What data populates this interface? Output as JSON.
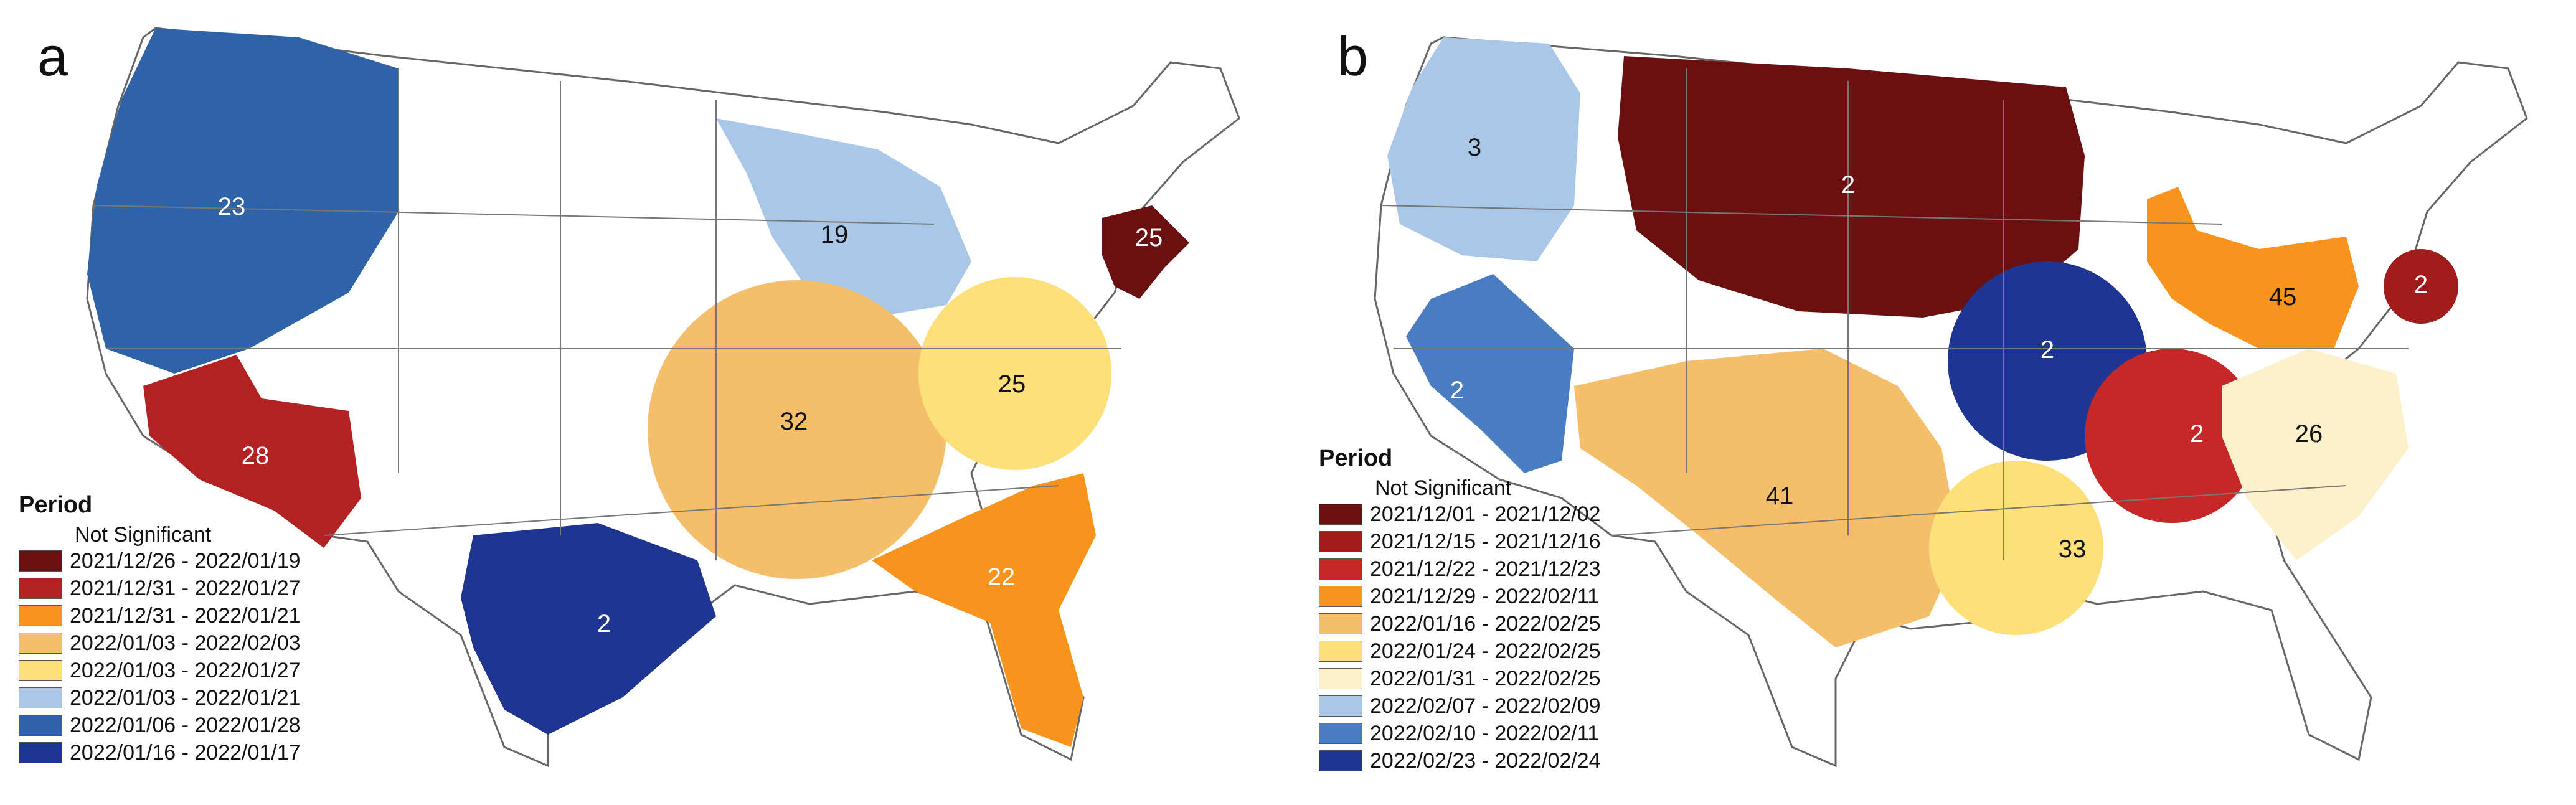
{
  "panels": [
    {
      "label": "a",
      "legend_title": "Period",
      "not_significant": "Not Significant",
      "legend": [
        {
          "text": "2021/12/26 - 2022/01/19",
          "color": "#6b1010"
        },
        {
          "text": "2021/12/31 - 2022/01/27",
          "color": "#b32222"
        },
        {
          "text": "2021/12/31 - 2022/01/21",
          "color": "#f7941d"
        },
        {
          "text": "2022/01/03 - 2022/02/03",
          "color": "#f5be6a"
        },
        {
          "text": "2022/01/03 - 2022/01/27",
          "color": "#fde07a"
        },
        {
          "text": "2022/01/03 - 2022/01/21",
          "color": "#a9c8e8"
        },
        {
          "text": "2022/01/06 - 2022/01/28",
          "color": "#2f63a8"
        },
        {
          "text": "2022/01/16 - 2022/01/17",
          "color": "#1e3592"
        }
      ],
      "clusters": [
        {
          "name": "pacific-northwest",
          "count": "23",
          "color": "#2f63a8"
        },
        {
          "name": "southwest",
          "count": "28",
          "color": "#b32222"
        },
        {
          "name": "texas",
          "count": "2",
          "color": "#1e3592"
        },
        {
          "name": "upper-midwest",
          "count": "19",
          "color": "#a9c8e8"
        },
        {
          "name": "central-mississippi",
          "count": "32",
          "color": "#f5be6a"
        },
        {
          "name": "ohio-valley",
          "count": "25",
          "color": "#fde07a"
        },
        {
          "name": "southeast",
          "count": "22",
          "color": "#f7941d"
        },
        {
          "name": "northeast",
          "count": "25",
          "color": "#6b1010"
        }
      ]
    },
    {
      "label": "b",
      "legend_title": "Period",
      "not_significant": "Not Significant",
      "legend": [
        {
          "text": "2021/12/01 - 2021/12/02",
          "color": "#6b1010"
        },
        {
          "text": "2021/12/15 - 2021/12/16",
          "color": "#a31c1c"
        },
        {
          "text": "2021/12/22 - 2021/12/23",
          "color": "#c62828"
        },
        {
          "text": "2021/12/29 - 2022/02/11",
          "color": "#f7941d"
        },
        {
          "text": "2022/01/16 - 2022/02/25",
          "color": "#f5be6a"
        },
        {
          "text": "2022/01/24 - 2022/02/25",
          "color": "#fde07a"
        },
        {
          "text": "2022/01/31 - 2022/02/25",
          "color": "#fdf1cc"
        },
        {
          "text": "2022/02/07 - 2022/02/09",
          "color": "#a9c8e8"
        },
        {
          "text": "2022/02/10 - 2022/02/11",
          "color": "#4a7cc2"
        },
        {
          "text": "2022/02/23 - 2022/02/24",
          "color": "#1e3592"
        }
      ],
      "clusters": [
        {
          "name": "pacific-northwest",
          "count": "3",
          "color": "#a9c8e8"
        },
        {
          "name": "california-nevada",
          "count": "2",
          "color": "#4a7cc2"
        },
        {
          "name": "northern-plains",
          "count": "2",
          "color": "#6b1010"
        },
        {
          "name": "iowa-missouri",
          "count": "2",
          "color": "#1e3592"
        },
        {
          "name": "southwest-plains",
          "count": "41",
          "color": "#f5be6a"
        },
        {
          "name": "lower-mississippi",
          "count": "33",
          "color": "#fde07a"
        },
        {
          "name": "tennessee",
          "count": "2",
          "color": "#c62828"
        },
        {
          "name": "carolinas",
          "count": "26",
          "color": "#fdf1cc"
        },
        {
          "name": "great-lakes-ohio",
          "count": "45",
          "color": "#f7941d"
        },
        {
          "name": "mid-atlantic",
          "count": "2",
          "color": "#a31c1c"
        }
      ]
    }
  ]
}
